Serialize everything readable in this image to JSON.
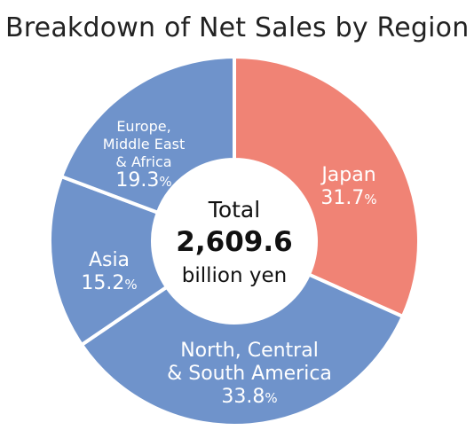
{
  "chart_data": {
    "type": "pie",
    "title": "Breakdown of Net Sales by Region",
    "categories": [
      "Japan",
      "North, Central & South America",
      "Asia",
      "Europe, Middle East & Africa"
    ],
    "values": [
      31.7,
      33.8,
      15.2,
      19.3
    ],
    "unit": "%",
    "colors": [
      "#f08375",
      "#6f93cb",
      "#6f93cb",
      "#6f93cb"
    ],
    "labels": [
      {
        "lines": [
          "Japan"
        ],
        "pct": "31.7",
        "suffix": "%"
      },
      {
        "lines": [
          "North, Central",
          "& South America"
        ],
        "pct": "33.8",
        "suffix": "%"
      },
      {
        "lines": [
          "Asia"
        ],
        "pct": "15.2",
        "suffix": "%"
      },
      {
        "lines": [
          "Europe,",
          "Middle East",
          "& Africa"
        ],
        "pct": "19.3",
        "suffix": "%"
      }
    ],
    "center": {
      "line1": "Total",
      "value": "2,609.6",
      "line3": "billion yen"
    }
  }
}
